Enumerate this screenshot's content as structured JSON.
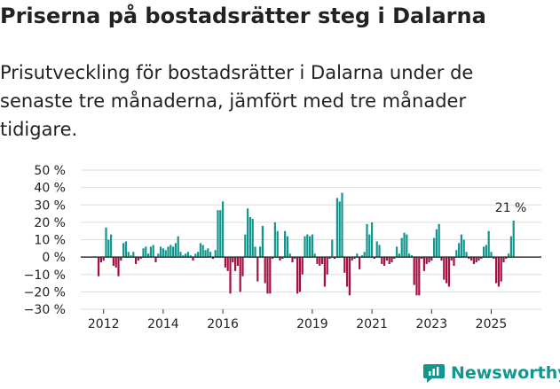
{
  "header": {
    "title": "Priserna på bostadsrätter steg i Dalarna",
    "subtitle": "Prisutveckling för bostadsrätter i Dalarna under de senaste tre månaderna, jämfört med tre månader tidigare."
  },
  "brand": {
    "name": "Newsworthy"
  },
  "colors": {
    "positive": "#12968d",
    "negative": "#a50f42",
    "axis": "#333333",
    "grid": "#dddddd"
  },
  "chart_data": {
    "type": "bar",
    "title": "Priserna på bostadsrätter steg i Dalarna",
    "xlabel": "",
    "ylabel": "",
    "ylim": [
      -30,
      50
    ],
    "yticks": [
      -30,
      -20,
      -10,
      0,
      10,
      20,
      30,
      40,
      50
    ],
    "ytick_labels": [
      "−30 %",
      "−20 %",
      "−10 %",
      "0 %",
      "10 %",
      "20 %",
      "30 %",
      "40 %",
      "50 %"
    ],
    "x_start": "2011-11",
    "x_tick_labels": [
      {
        "label": "2012",
        "month_index": 2
      },
      {
        "label": "2014",
        "month_index": 26
      },
      {
        "label": "2016",
        "month_index": 50
      },
      {
        "label": "2019",
        "month_index": 86
      },
      {
        "label": "2021",
        "month_index": 110
      },
      {
        "label": "2023",
        "month_index": 134
      },
      {
        "label": "2025",
        "month_index": 158
      }
    ],
    "last_value_label": "21 %",
    "values": [
      -11,
      -3,
      -2,
      17,
      10,
      13,
      -5,
      -6,
      -11,
      -2,
      8,
      9,
      3,
      1,
      3,
      -4,
      -2,
      -1,
      5,
      6,
      2,
      6,
      7,
      -3,
      2,
      6,
      5,
      4,
      6,
      7,
      6,
      8,
      12,
      3,
      1,
      2,
      3,
      1,
      -2,
      2,
      3,
      8,
      7,
      4,
      5,
      3,
      -1,
      4,
      27,
      27,
      32,
      -6,
      -8,
      -21,
      -3,
      -8,
      -5,
      -20,
      -11,
      13,
      28,
      23,
      22,
      6,
      -14,
      6,
      18,
      -15,
      -21,
      -21,
      -1,
      20,
      15,
      -2,
      -1,
      15,
      12,
      2,
      -3,
      -1,
      -21,
      -20,
      -10,
      12,
      13,
      12,
      13,
      2,
      -4,
      -5,
      -4,
      -17,
      -10,
      -1,
      10,
      -1,
      34,
      32,
      37,
      -9,
      -17,
      -22,
      -2,
      -1,
      2,
      -7,
      1,
      3,
      19,
      13,
      20,
      -1,
      9,
      7,
      -4,
      -5,
      -2,
      -4,
      -3,
      -1,
      6,
      2,
      11,
      14,
      13,
      2,
      1,
      -16,
      -22,
      -22,
      -1,
      -8,
      -4,
      -3,
      -2,
      11,
      16,
      19,
      -2,
      -13,
      -15,
      -17,
      -2,
      -5,
      4,
      8,
      13,
      10,
      3,
      -1,
      -2,
      -4,
      -3,
      -2,
      -1,
      6,
      7,
      15,
      3,
      -1,
      -15,
      -17,
      -14,
      -3,
      -1,
      2,
      12,
      21
    ]
  }
}
